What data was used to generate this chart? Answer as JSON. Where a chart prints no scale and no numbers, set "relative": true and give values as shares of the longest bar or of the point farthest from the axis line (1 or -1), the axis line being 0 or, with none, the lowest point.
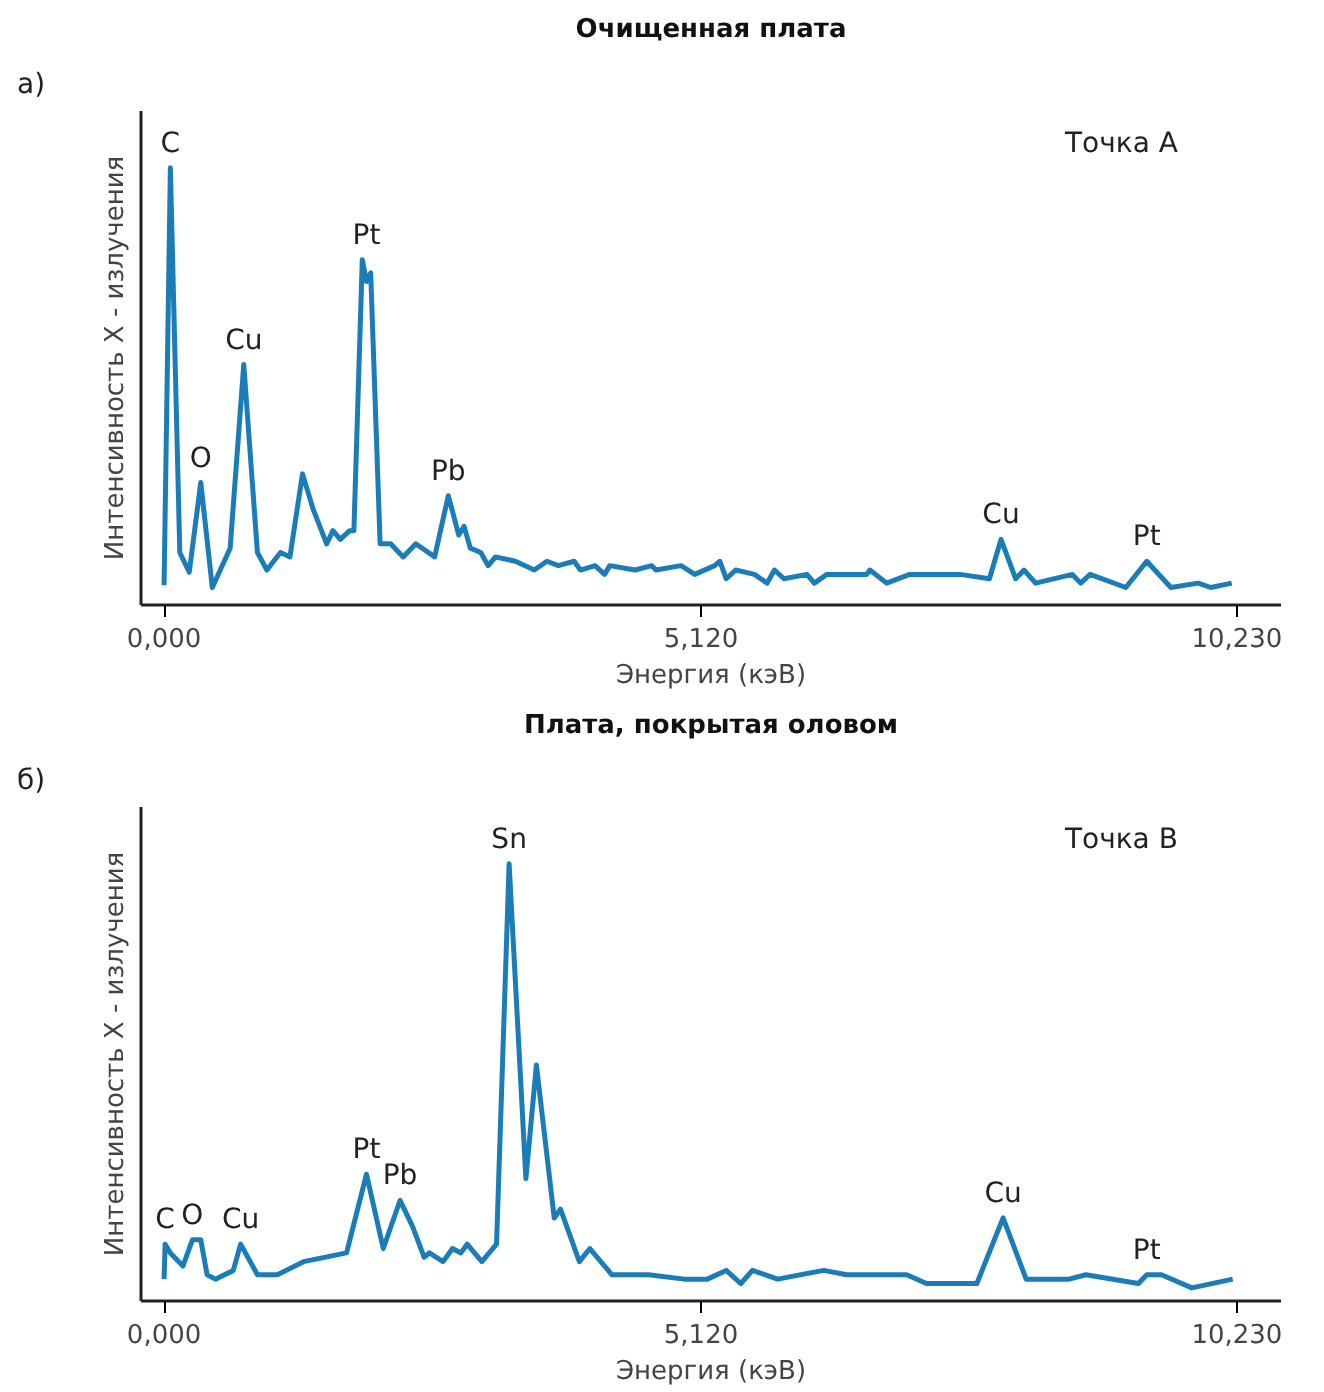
{
  "chart_data": [
    {
      "type": "line",
      "title": "Очищенная плата",
      "xlabel": "Энергия (кэВ)",
      "ylabel": "Интенсивность X - излучения",
      "relative": true,
      "xlim": [
        -0.22,
        10.65
      ],
      "xticks": [
        {
          "value": 0,
          "label": "0,000"
        },
        {
          "value": 5.12,
          "label": "5,120"
        },
        {
          "value": 10.23,
          "label": "10,230"
        }
      ],
      "series": [
        {
          "color": "#1a7db8",
          "x": [
            0.0,
            0.06,
            0.15,
            0.24,
            0.35,
            0.46,
            0.63,
            0.76,
            0.89,
            0.98,
            1.11,
            1.2,
            1.32,
            1.42,
            1.55,
            1.61,
            1.68,
            1.77,
            1.81,
            1.89,
            1.93,
            1.97,
            2.06,
            2.16,
            2.28,
            2.4,
            2.58,
            2.71,
            2.81,
            2.86,
            2.92,
            3.02,
            3.09,
            3.16,
            3.35,
            3.53,
            3.65,
            3.76,
            3.91,
            3.97,
            4.11,
            4.2,
            4.25,
            4.49,
            4.65,
            4.69,
            4.93,
            5.06,
            5.25,
            5.3,
            5.36,
            5.45,
            5.63,
            5.75,
            5.82,
            5.91,
            6.13,
            6.2,
            6.32,
            6.7,
            6.73,
            6.89,
            7.11,
            7.24,
            7.59,
            7.87,
            7.98,
            8.12,
            8.2,
            8.31,
            8.66,
            8.74,
            8.83,
            9.17,
            9.37,
            9.6,
            9.86,
            9.98,
            10.18
          ],
          "values": [
            0.045,
            1.0,
            0.12,
            0.075,
            0.28,
            0.04,
            0.13,
            0.55,
            0.12,
            0.08,
            0.12,
            0.11,
            0.3,
            0.22,
            0.14,
            0.17,
            0.15,
            0.17,
            0.17,
            0.79,
            0.74,
            0.76,
            0.14,
            0.14,
            0.11,
            0.14,
            0.11,
            0.25,
            0.16,
            0.18,
            0.13,
            0.12,
            0.09,
            0.11,
            0.1,
            0.08,
            0.1,
            0.09,
            0.1,
            0.08,
            0.09,
            0.07,
            0.09,
            0.08,
            0.09,
            0.08,
            0.09,
            0.07,
            0.09,
            0.1,
            0.06,
            0.08,
            0.07,
            0.05,
            0.08,
            0.06,
            0.07,
            0.05,
            0.07,
            0.07,
            0.08,
            0.05,
            0.07,
            0.07,
            0.07,
            0.06,
            0.15,
            0.06,
            0.08,
            0.05,
            0.07,
            0.05,
            0.07,
            0.04,
            0.1,
            0.04,
            0.05,
            0.04,
            0.05
          ]
        }
      ],
      "annotations": [
        "а)",
        "Точка A",
        {
          "text": "C",
          "x": 0.06,
          "y": 1.0
        },
        {
          "text": "O",
          "x": 0.35,
          "y": 0.28
        },
        {
          "text": "Cu",
          "x": 0.76,
          "y": 0.55
        },
        {
          "text": "Pt",
          "x": 1.93,
          "y": 0.79
        },
        {
          "text": "Pb",
          "x": 2.71,
          "y": 0.25
        },
        {
          "text": "Cu",
          "x": 7.98,
          "y": 0.15
        },
        {
          "text": "Pt",
          "x": 9.37,
          "y": 0.1
        }
      ]
    },
    {
      "type": "line",
      "title": "Плата, покрытая оловом",
      "xlabel": "Энергия (кэВ)",
      "ylabel": "Интенсивность X - излучения",
      "relative": true,
      "xlim": [
        -0.22,
        10.65
      ],
      "xticks": [
        {
          "value": 0,
          "label": "0,000"
        },
        {
          "value": 5.12,
          "label": "5,120"
        },
        {
          "value": 10.23,
          "label": "10,230"
        }
      ],
      "series": [
        {
          "color": "#1a7db8",
          "x": [
            0.0,
            0.01,
            0.06,
            0.18,
            0.27,
            0.35,
            0.41,
            0.49,
            0.66,
            0.73,
            0.89,
            1.08,
            1.33,
            1.74,
            1.93,
            2.09,
            2.25,
            2.37,
            2.48,
            2.53,
            2.66,
            2.75,
            2.83,
            2.89,
            3.03,
            3.17,
            3.29,
            3.45,
            3.55,
            3.72,
            3.78,
            3.96,
            4.06,
            4.27,
            4.62,
            4.96,
            5.18,
            5.36,
            5.5,
            5.61,
            5.85,
            6.29,
            6.51,
            7.08,
            7.27,
            7.75,
            8.0,
            8.22,
            8.47,
            8.63,
            8.79,
            9.29,
            9.37,
            9.51,
            9.8,
            10.19
          ],
          "values": [
            0.05,
            0.13,
            0.11,
            0.08,
            0.14,
            0.14,
            0.06,
            0.05,
            0.07,
            0.13,
            0.06,
            0.06,
            0.09,
            0.11,
            0.29,
            0.12,
            0.23,
            0.17,
            0.1,
            0.11,
            0.09,
            0.12,
            0.11,
            0.13,
            0.09,
            0.13,
            1.0,
            0.28,
            0.54,
            0.19,
            0.21,
            0.09,
            0.12,
            0.06,
            0.06,
            0.05,
            0.05,
            0.07,
            0.04,
            0.07,
            0.05,
            0.07,
            0.06,
            0.06,
            0.04,
            0.04,
            0.19,
            0.05,
            0.05,
            0.05,
            0.06,
            0.04,
            0.06,
            0.06,
            0.03,
            0.05
          ]
        }
      ],
      "annotations": [
        "б)",
        "Точка B",
        {
          "text": "C",
          "x": 0.01,
          "y": 0.13
        },
        {
          "text": "O",
          "x": 0.27,
          "y": 0.14
        },
        {
          "text": "Cu",
          "x": 0.73,
          "y": 0.13
        },
        {
          "text": "Pt",
          "x": 1.93,
          "y": 0.29
        },
        {
          "text": "Pb",
          "x": 2.25,
          "y": 0.23
        },
        {
          "text": "Sn",
          "x": 3.29,
          "y": 1.0
        },
        {
          "text": "Cu",
          "x": 8.0,
          "y": 0.19
        },
        {
          "text": "Pt",
          "x": 9.37,
          "y": 0.06
        }
      ]
    }
  ]
}
